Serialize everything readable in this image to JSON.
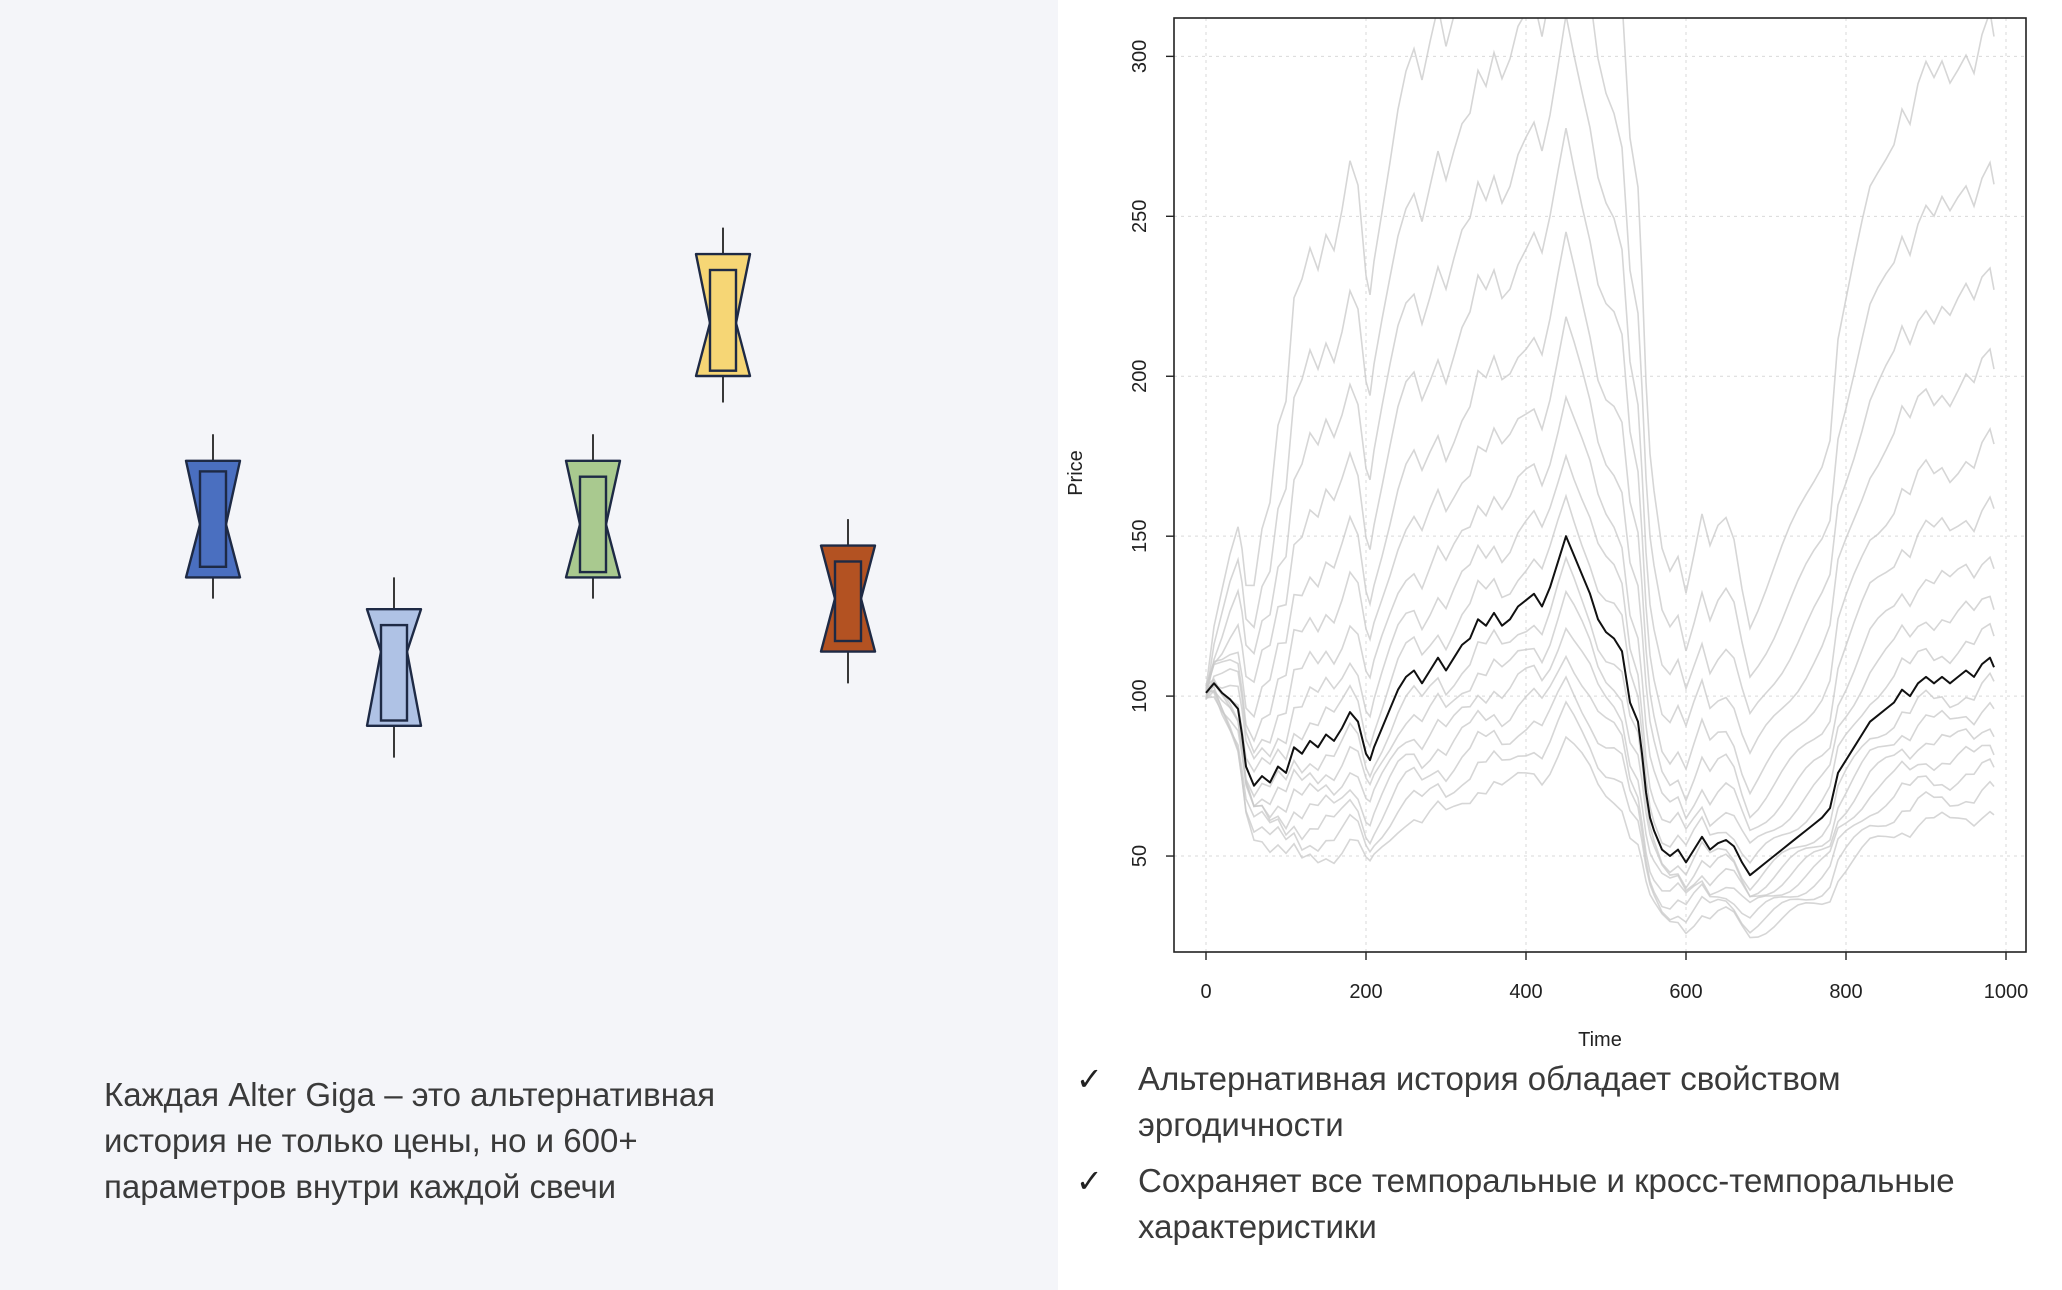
{
  "left_panel": {
    "caption_lines": [
      "Каждая Alter Giga – это альтернативная",
      "история не только цены, но и 600+",
      "параметров внутри каждой свечи"
    ],
    "candles": [
      {
        "name": "candle-blue",
        "color": "#4a6fc0",
        "low": 38,
        "q1": 42,
        "body_low": 44,
        "median": 52,
        "body_high": 62,
        "q3": 64,
        "high": 69
      },
      {
        "name": "candle-light-blue",
        "color": "#afc2e5",
        "low": 8,
        "q1": 14,
        "body_low": 15,
        "median": 28,
        "body_high": 33,
        "q3": 36,
        "high": 42
      },
      {
        "name": "candle-green",
        "color": "#a9c98f",
        "low": 38,
        "q1": 42,
        "body_low": 43,
        "median": 52,
        "body_high": 61,
        "q3": 64,
        "high": 69
      },
      {
        "name": "candle-yellow",
        "color": "#f6d675",
        "low": 75,
        "q1": 80,
        "body_low": 81,
        "median": 90,
        "body_high": 100,
        "q3": 103,
        "high": 108
      },
      {
        "name": "candle-orange",
        "color": "#b35222",
        "low": 22,
        "q1": 28,
        "body_low": 30,
        "median": 38,
        "body_high": 45,
        "q3": 48,
        "high": 53
      }
    ]
  },
  "chart_data": {
    "type": "line",
    "title": "",
    "xlabel": "Time",
    "ylabel": "Price",
    "xlim": [
      -40,
      1025
    ],
    "ylim": [
      20,
      312
    ],
    "xticks": [
      0,
      200,
      400,
      600,
      800,
      1000
    ],
    "yticks": [
      50,
      100,
      150,
      200,
      250,
      300
    ],
    "grid": true,
    "main_series": {
      "name": "actual",
      "color": "#111111",
      "points": [
        [
          0,
          101
        ],
        [
          10,
          104
        ],
        [
          20,
          101
        ],
        [
          30,
          99
        ],
        [
          40,
          96
        ],
        [
          45,
          88
        ],
        [
          50,
          78
        ],
        [
          60,
          72
        ],
        [
          70,
          75
        ],
        [
          80,
          73
        ],
        [
          90,
          78
        ],
        [
          100,
          76
        ],
        [
          110,
          84
        ],
        [
          120,
          82
        ],
        [
          130,
          86
        ],
        [
          140,
          84
        ],
        [
          150,
          88
        ],
        [
          160,
          86
        ],
        [
          170,
          90
        ],
        [
          180,
          95
        ],
        [
          190,
          92
        ],
        [
          200,
          82
        ],
        [
          205,
          80
        ],
        [
          210,
          84
        ],
        [
          220,
          90
        ],
        [
          230,
          96
        ],
        [
          240,
          102
        ],
        [
          250,
          106
        ],
        [
          260,
          108
        ],
        [
          270,
          104
        ],
        [
          280,
          108
        ],
        [
          290,
          112
        ],
        [
          300,
          108
        ],
        [
          310,
          112
        ],
        [
          320,
          116
        ],
        [
          330,
          118
        ],
        [
          340,
          124
        ],
        [
          350,
          122
        ],
        [
          360,
          126
        ],
        [
          370,
          122
        ],
        [
          380,
          124
        ],
        [
          390,
          128
        ],
        [
          400,
          130
        ],
        [
          410,
          132
        ],
        [
          420,
          128
        ],
        [
          430,
          134
        ],
        [
          440,
          142
        ],
        [
          450,
          150
        ],
        [
          460,
          144
        ],
        [
          470,
          138
        ],
        [
          480,
          132
        ],
        [
          490,
          124
        ],
        [
          500,
          120
        ],
        [
          510,
          118
        ],
        [
          520,
          114
        ],
        [
          530,
          98
        ],
        [
          540,
          92
        ],
        [
          545,
          82
        ],
        [
          550,
          70
        ],
        [
          555,
          62
        ],
        [
          560,
          58
        ],
        [
          570,
          52
        ],
        [
          580,
          50
        ],
        [
          590,
          52
        ],
        [
          600,
          48
        ],
        [
          610,
          52
        ],
        [
          620,
          56
        ],
        [
          630,
          52
        ],
        [
          640,
          54
        ],
        [
          650,
          55
        ],
        [
          660,
          53
        ],
        [
          670,
          48
        ],
        [
          680,
          44
        ],
        [
          690,
          46
        ],
        [
          700,
          48
        ],
        [
          710,
          50
        ],
        [
          720,
          52
        ],
        [
          730,
          54
        ],
        [
          740,
          56
        ],
        [
          750,
          58
        ],
        [
          760,
          60
        ],
        [
          770,
          62
        ],
        [
          780,
          65
        ],
        [
          790,
          76
        ],
        [
          800,
          80
        ],
        [
          810,
          84
        ],
        [
          820,
          88
        ],
        [
          830,
          92
        ],
        [
          840,
          94
        ],
        [
          850,
          96
        ],
        [
          860,
          98
        ],
        [
          870,
          102
        ],
        [
          880,
          100
        ],
        [
          890,
          104
        ],
        [
          900,
          106
        ],
        [
          910,
          104
        ],
        [
          920,
          106
        ],
        [
          930,
          104
        ],
        [
          940,
          106
        ],
        [
          950,
          108
        ],
        [
          960,
          106
        ],
        [
          970,
          110
        ],
        [
          980,
          112
        ],
        [
          985,
          109
        ]
      ]
    },
    "alt_multipliers": [
      0.58,
      0.64,
      0.7,
      0.76,
      0.82,
      0.88,
      0.94,
      1.08,
      1.18,
      1.3,
      1.45,
      1.62,
      1.85,
      2.1,
      2.4,
      2.8
    ],
    "alt_color": "#c8c8c8"
  },
  "bullets": [
    {
      "check": "✓",
      "lines": [
        "Альтернативная история обладает свойством",
        "эргодичности"
      ]
    },
    {
      "check": "✓",
      "lines": [
        "Сохраняет все темпоральные и кросс-темпоральные",
        "характеристики"
      ]
    }
  ]
}
